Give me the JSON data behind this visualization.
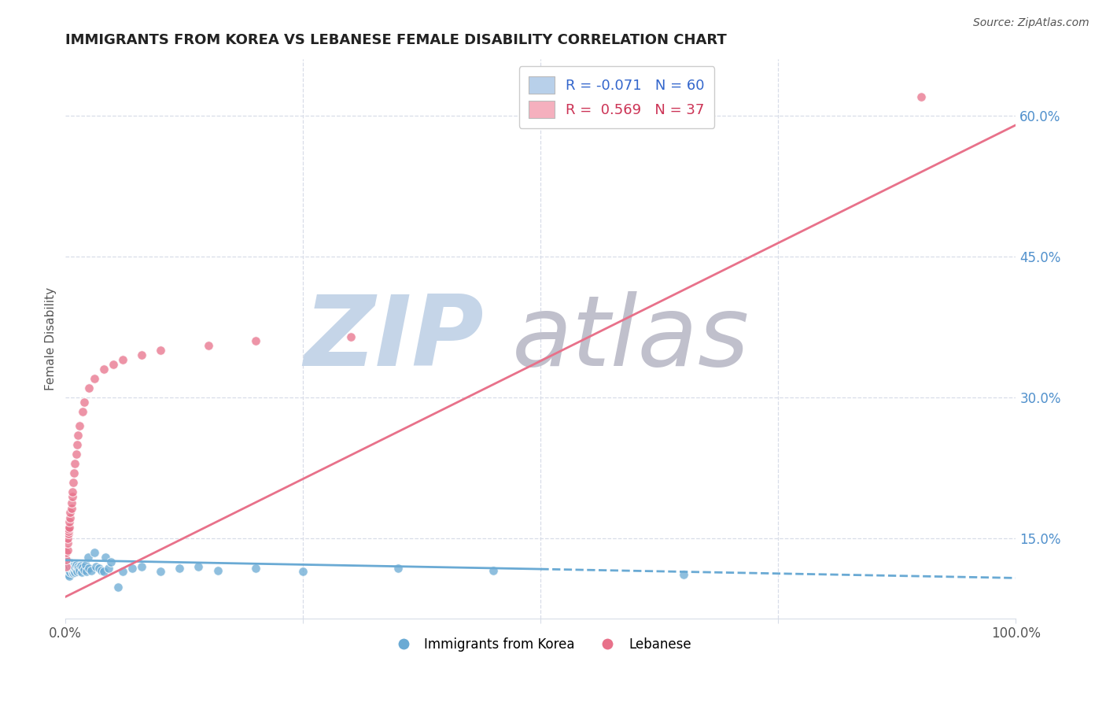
{
  "title": "IMMIGRANTS FROM KOREA VS LEBANESE FEMALE DISABILITY CORRELATION CHART",
  "source": "Source: ZipAtlas.com",
  "ylabel": "Female Disability",
  "legend_entries": [
    {
      "label": "R = -0.071   N = 60",
      "color": "#b8d0ea"
    },
    {
      "label": "R =  0.569   N = 37",
      "color": "#f5b0be"
    }
  ],
  "legend_labels_bottom": [
    "Immigrants from Korea",
    "Lebanese"
  ],
  "korea_color": "#6aaad4",
  "lebanese_color": "#e8718a",
  "xlim": [
    0.0,
    1.0
  ],
  "ylim": [
    0.065,
    0.66
  ],
  "xticks": [
    0.0,
    0.25,
    0.5,
    0.75,
    1.0
  ],
  "ytick_vals_right": [
    0.15,
    0.3,
    0.45,
    0.6
  ],
  "korea_scatter_x": [
    0.001,
    0.001,
    0.002,
    0.002,
    0.002,
    0.003,
    0.003,
    0.003,
    0.004,
    0.004,
    0.004,
    0.005,
    0.005,
    0.005,
    0.006,
    0.006,
    0.007,
    0.007,
    0.008,
    0.008,
    0.009,
    0.009,
    0.01,
    0.01,
    0.011,
    0.011,
    0.012,
    0.013,
    0.014,
    0.015,
    0.016,
    0.017,
    0.018,
    0.02,
    0.021,
    0.022,
    0.024,
    0.025,
    0.027,
    0.03,
    0.032,
    0.035,
    0.038,
    0.04,
    0.042,
    0.045,
    0.048,
    0.055,
    0.06,
    0.07,
    0.08,
    0.1,
    0.12,
    0.14,
    0.16,
    0.2,
    0.25,
    0.35,
    0.45,
    0.65
  ],
  "korea_scatter_y": [
    0.115,
    0.12,
    0.113,
    0.118,
    0.125,
    0.112,
    0.117,
    0.122,
    0.11,
    0.116,
    0.121,
    0.114,
    0.119,
    0.124,
    0.118,
    0.123,
    0.115,
    0.12,
    0.113,
    0.118,
    0.116,
    0.121,
    0.114,
    0.119,
    0.117,
    0.122,
    0.115,
    0.12,
    0.118,
    0.116,
    0.121,
    0.114,
    0.119,
    0.117,
    0.122,
    0.115,
    0.13,
    0.118,
    0.116,
    0.135,
    0.12,
    0.118,
    0.116,
    0.115,
    0.13,
    0.118,
    0.125,
    0.098,
    0.115,
    0.118,
    0.12,
    0.115,
    0.118,
    0.12,
    0.116,
    0.118,
    0.115,
    0.118,
    0.116,
    0.112
  ],
  "lebanese_scatter_x": [
    0.001,
    0.001,
    0.001,
    0.002,
    0.002,
    0.002,
    0.003,
    0.003,
    0.003,
    0.004,
    0.004,
    0.005,
    0.005,
    0.006,
    0.006,
    0.007,
    0.007,
    0.008,
    0.009,
    0.01,
    0.011,
    0.012,
    0.013,
    0.015,
    0.018,
    0.02,
    0.025,
    0.03,
    0.04,
    0.05,
    0.06,
    0.08,
    0.1,
    0.15,
    0.2,
    0.3,
    0.9
  ],
  "lebanese_scatter_y": [
    0.12,
    0.128,
    0.135,
    0.138,
    0.145,
    0.15,
    0.155,
    0.158,
    0.16,
    0.162,
    0.168,
    0.172,
    0.178,
    0.182,
    0.188,
    0.195,
    0.2,
    0.21,
    0.22,
    0.23,
    0.24,
    0.25,
    0.26,
    0.27,
    0.285,
    0.295,
    0.31,
    0.32,
    0.33,
    0.335,
    0.34,
    0.345,
    0.35,
    0.355,
    0.36,
    0.365,
    0.62
  ],
  "korea_trend_y_start": 0.127,
  "korea_trend_y_end": 0.108,
  "lebanese_trend_y_start": 0.088,
  "lebanese_trend_y_end": 0.59,
  "background_color": "#ffffff",
  "grid_color": "#d8dde8",
  "title_color": "#222222",
  "axis_label_color": "#555555",
  "right_tick_color": "#5090cc",
  "watermark_color_zip": "#c5d5e8",
  "watermark_color_atlas": "#c0c0cc"
}
